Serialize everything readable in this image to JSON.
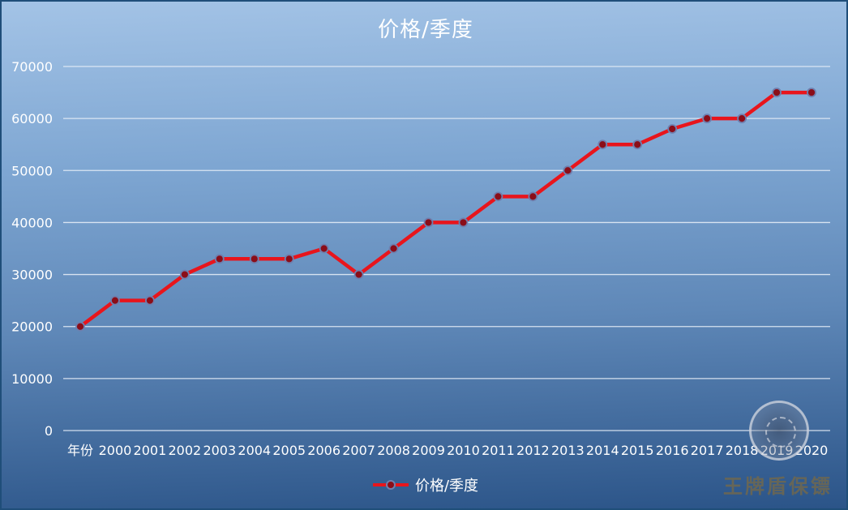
{
  "chart_data": {
    "type": "line",
    "title": "价格/季度",
    "categories": [
      "年份",
      "2000",
      "2001",
      "2002",
      "2003",
      "2004",
      "2005",
      "2006",
      "2007",
      "2008",
      "2009",
      "2010",
      "2011",
      "2012",
      "2013",
      "2014",
      "2015",
      "2016",
      "2017",
      "2018",
      "2019",
      "2020"
    ],
    "series": [
      {
        "name": "价格/季度",
        "values": [
          20000,
          25000,
          25000,
          30000,
          33000,
          33000,
          33000,
          35000,
          30000,
          35000,
          40000,
          40000,
          45000,
          45000,
          50000,
          55000,
          55000,
          58000,
          60000,
          60000,
          65000,
          65000
        ]
      }
    ],
    "yticks": [
      0,
      10000,
      20000,
      30000,
      40000,
      50000,
      60000,
      70000
    ],
    "ylim": [
      0,
      70000
    ],
    "xlabel": "",
    "ylabel": "",
    "grid": true,
    "legend_position": "bottom",
    "line_color": "#e8151c",
    "marker_color": "#8b0d18"
  },
  "watermark": {
    "text": "王牌盾保镖"
  }
}
